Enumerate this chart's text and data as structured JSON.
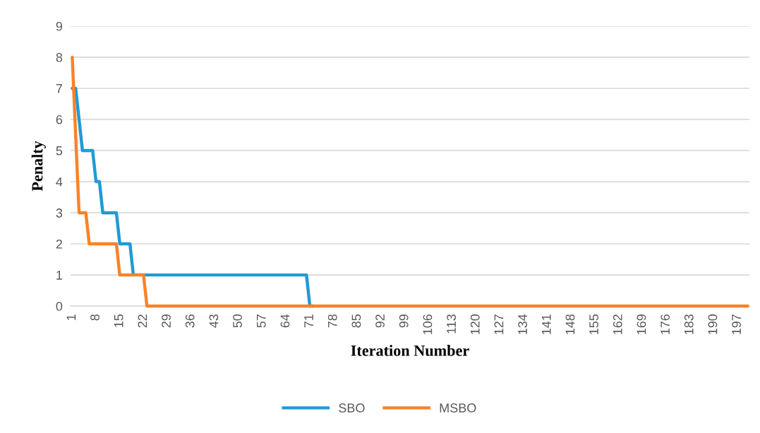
{
  "chart_data": {
    "type": "line",
    "xlabel": "Iteration Number",
    "ylabel": "Penalty",
    "categories": [
      "1",
      null,
      null,
      null,
      null,
      null,
      null,
      "8",
      null,
      null,
      null,
      null,
      null,
      null,
      "15",
      null,
      null,
      null,
      null,
      null,
      null,
      "22",
      null,
      null,
      null,
      null,
      null,
      null,
      "29",
      null,
      null,
      null,
      null,
      null,
      null,
      "36",
      null,
      null,
      null,
      null,
      null,
      null,
      "43",
      null,
      null,
      null,
      null,
      null,
      null,
      "50",
      null,
      null,
      null,
      null,
      null,
      null,
      "57",
      null,
      null,
      null,
      null,
      null,
      null,
      "64",
      null,
      null,
      null,
      null,
      null,
      null,
      "71",
      null,
      null,
      null,
      null,
      null,
      null,
      "78",
      null,
      null,
      null,
      null,
      null,
      null,
      "85",
      null,
      null,
      null,
      null,
      null,
      null,
      "92",
      null,
      null,
      null,
      null,
      null,
      null,
      "99",
      null,
      null,
      null,
      null,
      null,
      null,
      "106",
      null,
      null,
      null,
      null,
      null,
      null,
      "113",
      null,
      null,
      null,
      null,
      null,
      null,
      "120",
      null,
      null,
      null,
      null,
      null,
      null,
      "127",
      null,
      null,
      null,
      null,
      null,
      null,
      "134",
      null,
      null,
      null,
      null,
      null,
      null,
      "141",
      null,
      null,
      null,
      null,
      null,
      null,
      "148",
      null,
      null,
      null,
      null,
      null,
      null,
      "155",
      null,
      null,
      null,
      null,
      null,
      null,
      "162",
      null,
      null,
      null,
      null,
      null,
      null,
      "169",
      null,
      null,
      null,
      null,
      null,
      null,
      "176",
      null,
      null,
      null,
      null,
      null,
      null,
      "183",
      null,
      null,
      null,
      null,
      null,
      null,
      "190",
      null,
      null,
      null,
      null,
      null,
      null,
      "197",
      null,
      null,
      null
    ],
    "series": [
      {
        "name": "SBO",
        "color": "#1f9ad6",
        "values": [
          7,
          7,
          6,
          5,
          5,
          5,
          5,
          4,
          4,
          3,
          3,
          3,
          3,
          3,
          2,
          2,
          2,
          2,
          1,
          1,
          1,
          1,
          1,
          1,
          1,
          1,
          1,
          1,
          1,
          1,
          1,
          1,
          1,
          1,
          1,
          1,
          1,
          1,
          1,
          1,
          1,
          1,
          1,
          1,
          1,
          1,
          1,
          1,
          1,
          1,
          1,
          1,
          1,
          1,
          1,
          1,
          1,
          1,
          1,
          1,
          1,
          1,
          1,
          1,
          1,
          1,
          1,
          1,
          1,
          1,
          0,
          0,
          null,
          null,
          null,
          null,
          null,
          null,
          null,
          null,
          null,
          null,
          null,
          null,
          null,
          null,
          null,
          null,
          null,
          null,
          null,
          null,
          null,
          null,
          null,
          null,
          null,
          null,
          null,
          null,
          null,
          null,
          null,
          null,
          null,
          null,
          null,
          null,
          null,
          null,
          null,
          null,
          null,
          null,
          null,
          null,
          null,
          null,
          null,
          null,
          null,
          null,
          null,
          null,
          null,
          null,
          null,
          null,
          null,
          null,
          null,
          null,
          null,
          null,
          null,
          null,
          null,
          null,
          null,
          null,
          null,
          null,
          null,
          null,
          null,
          null,
          null,
          null,
          null,
          null,
          null,
          null,
          null,
          null,
          null,
          null,
          null,
          null,
          null,
          null,
          null,
          null,
          null,
          null,
          null,
          null,
          null,
          null,
          null,
          null,
          null,
          null,
          null,
          null,
          null,
          null,
          null,
          null,
          null,
          null,
          null,
          null,
          null,
          null,
          null,
          null,
          null,
          null,
          null,
          null,
          null,
          null,
          null,
          null,
          null,
          null,
          null,
          null,
          null,
          null
        ]
      },
      {
        "name": "MSBO",
        "color": "#fb8227",
        "values": [
          8,
          5.5,
          3,
          3,
          3,
          2,
          2,
          2,
          2,
          2,
          2,
          2,
          2,
          2,
          1,
          1,
          1,
          1,
          1,
          1,
          1,
          1,
          0,
          0,
          0,
          0,
          0,
          0,
          0,
          0,
          0,
          0,
          0,
          0,
          0,
          0,
          0,
          0,
          0,
          0,
          0,
          0,
          0,
          0,
          0,
          0,
          0,
          0,
          0,
          0,
          0,
          0,
          0,
          0,
          0,
          0,
          0,
          0,
          0,
          0,
          0,
          0,
          0,
          0,
          0,
          0,
          0,
          0,
          0,
          0,
          0,
          0,
          0,
          0,
          0,
          0,
          0,
          0,
          0,
          0,
          0,
          0,
          0,
          0,
          0,
          0,
          0,
          0,
          0,
          0,
          0,
          0,
          0,
          0,
          0,
          0,
          0,
          0,
          0,
          0,
          0,
          0,
          0,
          0,
          0,
          0,
          0,
          0,
          0,
          0,
          0,
          0,
          0,
          0,
          0,
          0,
          0,
          0,
          0,
          0,
          0,
          0,
          0,
          0,
          0,
          0,
          0,
          0,
          0,
          0,
          0,
          0,
          0,
          0,
          0,
          0,
          0,
          0,
          0,
          0,
          0,
          0,
          0,
          0,
          0,
          0,
          0,
          0,
          0,
          0,
          0,
          0,
          0,
          0,
          0,
          0,
          0,
          0,
          0,
          0,
          0,
          0,
          0,
          0,
          0,
          0,
          0,
          0,
          0,
          0,
          0,
          0,
          0,
          0,
          0,
          0,
          0,
          0,
          0,
          0,
          0,
          0,
          0,
          0,
          0,
          0,
          0,
          0,
          0,
          0,
          0,
          0,
          0,
          0,
          0,
          0,
          0,
          0,
          0,
          0
        ]
      }
    ],
    "ylim": [
      0,
      9
    ],
    "yticks": [
      0,
      1,
      2,
      3,
      4,
      5,
      6,
      7,
      8,
      9
    ],
    "grid": "y",
    "legend": "bottom",
    "marker": "none",
    "line_style": "solid"
  }
}
